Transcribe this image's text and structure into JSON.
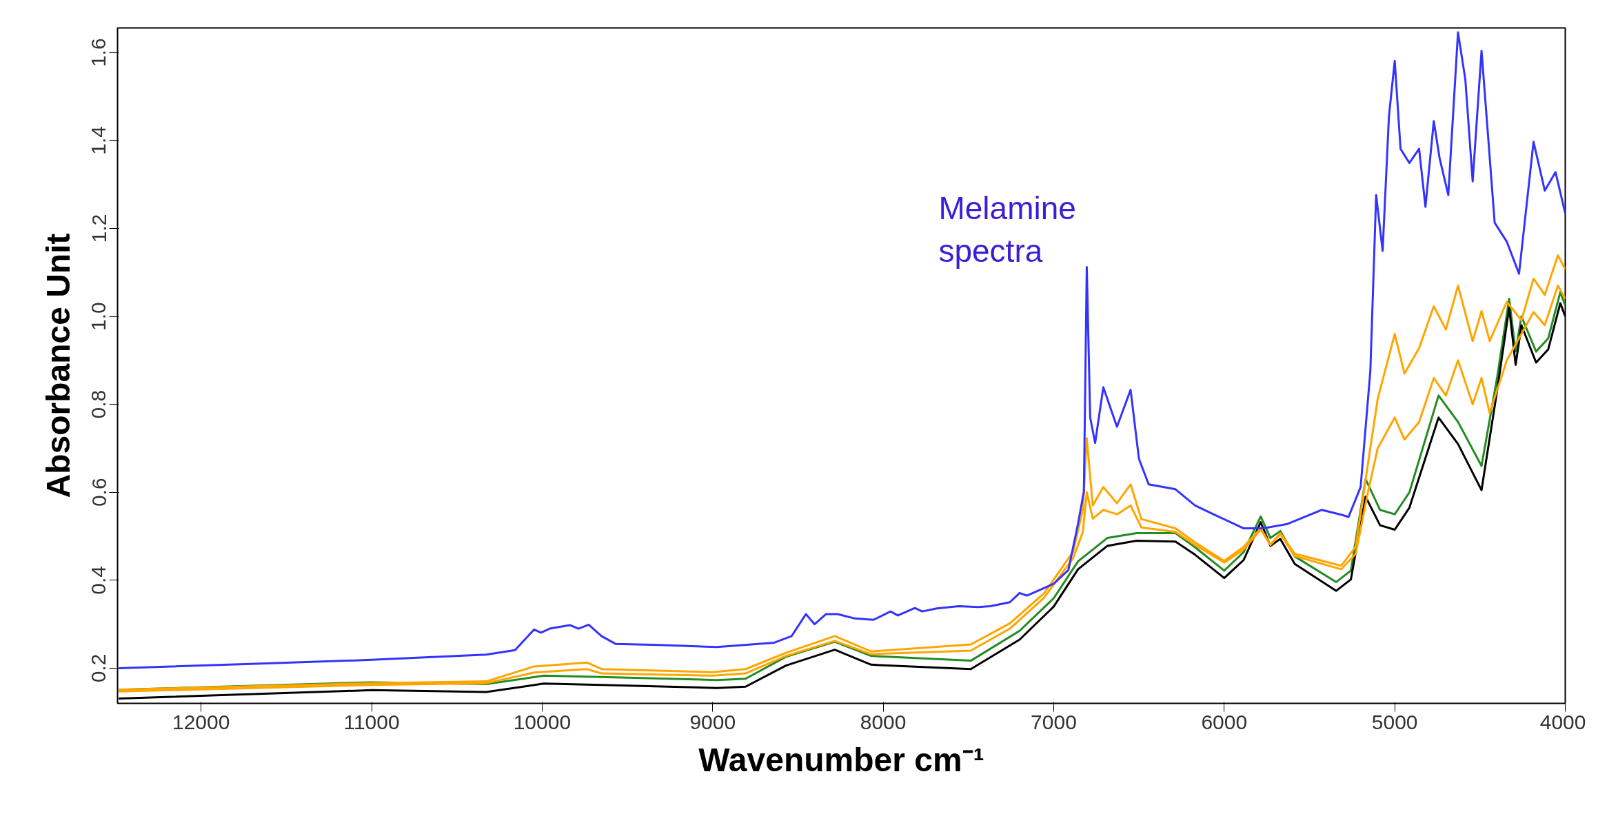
{
  "chart_data": {
    "type": "line",
    "xlabel": "Wavenumber cm⁻¹",
    "ylabel": "Absorbance Unit",
    "xlim": [
      12490,
      4000
    ],
    "ylim": [
      0.12,
      1.656
    ],
    "xticks": [
      12000,
      11000,
      10000,
      9000,
      8000,
      7000,
      6000,
      5000,
      4000
    ],
    "yticks": [
      0.2,
      0.4,
      0.6,
      0.8,
      {
        "value": 1,
        "label": "1.0"
      },
      1.2,
      1.4,
      1.6
    ],
    "grid": false,
    "marker": "none",
    "line_style": "solid",
    "annotations": [
      {
        "text": "Melamine\nspectra",
        "x": 6806,
        "y": 1.112
      }
    ],
    "series": [
      {
        "color": "#228b22",
        "x": [
          12483,
          11000,
          10328,
          9990,
          9652,
          8976,
          8807,
          8570,
          8284,
          8071,
          7486,
          7200,
          7000,
          6857,
          6686,
          6514,
          6286,
          6171,
          6000,
          5886,
          5786,
          5729,
          5671,
          5586,
          5343,
          5257,
          5171,
          5086,
          5000,
          4914,
          4743,
          4629,
          4491,
          4400,
          4329,
          4291,
          4257,
          4171,
          4100,
          4029,
          4000
        ],
        "values": [
          0.151,
          0.168,
          0.164,
          0.183,
          0.18,
          0.173,
          0.176,
          0.226,
          0.26,
          0.228,
          0.217,
          0.285,
          0.359,
          0.443,
          0.496,
          0.507,
          0.507,
          0.475,
          0.422,
          0.464,
          0.545,
          0.496,
          0.512,
          0.454,
          0.396,
          0.422,
          0.63,
          0.56,
          0.55,
          0.6,
          0.82,
          0.76,
          0.66,
          0.86,
          1.04,
          0.92,
          1.0,
          0.92,
          0.95,
          1.055,
          1.025
        ]
      },
      {
        "color": "#000000",
        "x": [
          12483,
          11000,
          10328,
          9990,
          9652,
          8976,
          8807,
          8570,
          8284,
          8071,
          7486,
          7200,
          7000,
          6857,
          6686,
          6514,
          6286,
          6171,
          6000,
          5886,
          5786,
          5729,
          5671,
          5586,
          5343,
          5257,
          5171,
          5086,
          5000,
          4914,
          4743,
          4629,
          4491,
          4400,
          4329,
          4291,
          4257,
          4171,
          4100,
          4029,
          4000
        ],
        "values": [
          0.131,
          0.15,
          0.146,
          0.165,
          0.162,
          0.155,
          0.158,
          0.206,
          0.242,
          0.208,
          0.198,
          0.265,
          0.34,
          0.425,
          0.478,
          0.49,
          0.488,
          0.458,
          0.405,
          0.446,
          0.532,
          0.478,
          0.494,
          0.437,
          0.376,
          0.402,
          0.59,
          0.525,
          0.515,
          0.565,
          0.77,
          0.71,
          0.605,
          0.83,
          1.02,
          0.89,
          0.98,
          0.895,
          0.925,
          1.03,
          1.0
        ]
      },
      {
        "color": "#ffa500",
        "x": [
          12483,
          11000,
          10328,
          10047,
          9737,
          9652,
          9000,
          8807,
          8570,
          8284,
          8071,
          7486,
          7257,
          7057,
          6886,
          6829,
          6806,
          6771,
          6709,
          6629,
          6549,
          6486,
          6286,
          6171,
          6000,
          5886,
          5786,
          5729,
          5671,
          5586,
          5314,
          5229,
          5157,
          5100,
          5000,
          4943,
          4857,
          4771,
          4700,
          4629,
          4543,
          4491,
          4443,
          4343,
          4257,
          4186,
          4120,
          4043,
          4000
        ],
        "values": [
          0.147,
          0.162,
          0.166,
          0.19,
          0.198,
          0.188,
          0.183,
          0.188,
          0.228,
          0.262,
          0.232,
          0.24,
          0.29,
          0.36,
          0.45,
          0.51,
          0.6,
          0.54,
          0.56,
          0.55,
          0.57,
          0.52,
          0.51,
          0.48,
          0.44,
          0.47,
          0.515,
          0.48,
          0.505,
          0.455,
          0.425,
          0.46,
          0.6,
          0.7,
          0.77,
          0.72,
          0.76,
          0.86,
          0.82,
          0.9,
          0.8,
          0.86,
          0.78,
          0.9,
          0.96,
          1.01,
          0.98,
          1.07,
          1.04
        ]
      },
      {
        "color": "#ffa500",
        "x": [
          12483,
          11000,
          10328,
          10047,
          9737,
          9652,
          9000,
          8807,
          8570,
          8284,
          8071,
          7486,
          7257,
          7057,
          6886,
          6829,
          6806,
          6771,
          6709,
          6629,
          6549,
          6486,
          6286,
          6171,
          6000,
          5886,
          5786,
          5729,
          5671,
          5586,
          5314,
          5229,
          5157,
          5100,
          5000,
          4943,
          4857,
          4771,
          4700,
          4629,
          4543,
          4491,
          4443,
          4343,
          4257,
          4186,
          4120,
          4043,
          4000
        ],
        "values": [
          0.151,
          0.166,
          0.17,
          0.204,
          0.213,
          0.198,
          0.191,
          0.198,
          0.235,
          0.273,
          0.238,
          0.254,
          0.302,
          0.37,
          0.465,
          0.56,
          0.723,
          0.57,
          0.612,
          0.575,
          0.618,
          0.539,
          0.518,
          0.486,
          0.444,
          0.476,
          0.518,
          0.481,
          0.507,
          0.46,
          0.433,
          0.476,
          0.665,
          0.812,
          0.96,
          0.87,
          0.928,
          1.023,
          0.97,
          1.07,
          0.944,
          1.012,
          0.944,
          1.033,
          0.991,
          1.086,
          1.049,
          1.139,
          1.107
        ]
      },
      {
        "color": "#3333ff",
        "x": [
          12483,
          11679,
          11000,
          10666,
          10328,
          10159,
          10047,
          10007,
          9956,
          9838,
          9787,
          9727,
          9652,
          9568,
          9314,
          8976,
          8639,
          8537,
          8453,
          8402,
          8335,
          8267,
          8166,
          8057,
          7957,
          7914,
          7814,
          7771,
          7686,
          7557,
          7443,
          7371,
          7257,
          7200,
          7157,
          7000,
          6914,
          6857,
          6823,
          6806,
          6786,
          6757,
          6709,
          6629,
          6549,
          6500,
          6443,
          6286,
          6171,
          6057,
          5886,
          5771,
          5629,
          5429,
          5314,
          5271,
          5200,
          5143,
          5109,
          5071,
          5034,
          5000,
          4966,
          4914,
          4857,
          4820,
          4771,
          4737,
          4686,
          4629,
          4586,
          4543,
          4491,
          4451,
          4414,
          4343,
          4271,
          4186,
          4120,
          4057,
          4000
        ],
        "values": [
          0.2,
          0.21,
          0.219,
          0.225,
          0.231,
          0.241,
          0.288,
          0.281,
          0.29,
          0.298,
          0.29,
          0.299,
          0.273,
          0.255,
          0.253,
          0.248,
          0.258,
          0.273,
          0.323,
          0.3,
          0.323,
          0.323,
          0.313,
          0.31,
          0.329,
          0.32,
          0.337,
          0.329,
          0.336,
          0.341,
          0.339,
          0.341,
          0.35,
          0.371,
          0.365,
          0.392,
          0.423,
          0.529,
          0.602,
          1.112,
          0.77,
          0.712,
          0.839,
          0.749,
          0.833,
          0.676,
          0.618,
          0.607,
          0.57,
          0.549,
          0.518,
          0.518,
          0.528,
          0.56,
          0.549,
          0.544,
          0.612,
          0.876,
          1.276,
          1.149,
          1.455,
          1.581,
          1.381,
          1.349,
          1.381,
          1.249,
          1.444,
          1.36,
          1.276,
          1.646,
          1.539,
          1.307,
          1.604,
          1.402,
          1.213,
          1.17,
          1.097,
          1.397,
          1.286,
          1.328,
          1.234
        ]
      }
    ]
  }
}
